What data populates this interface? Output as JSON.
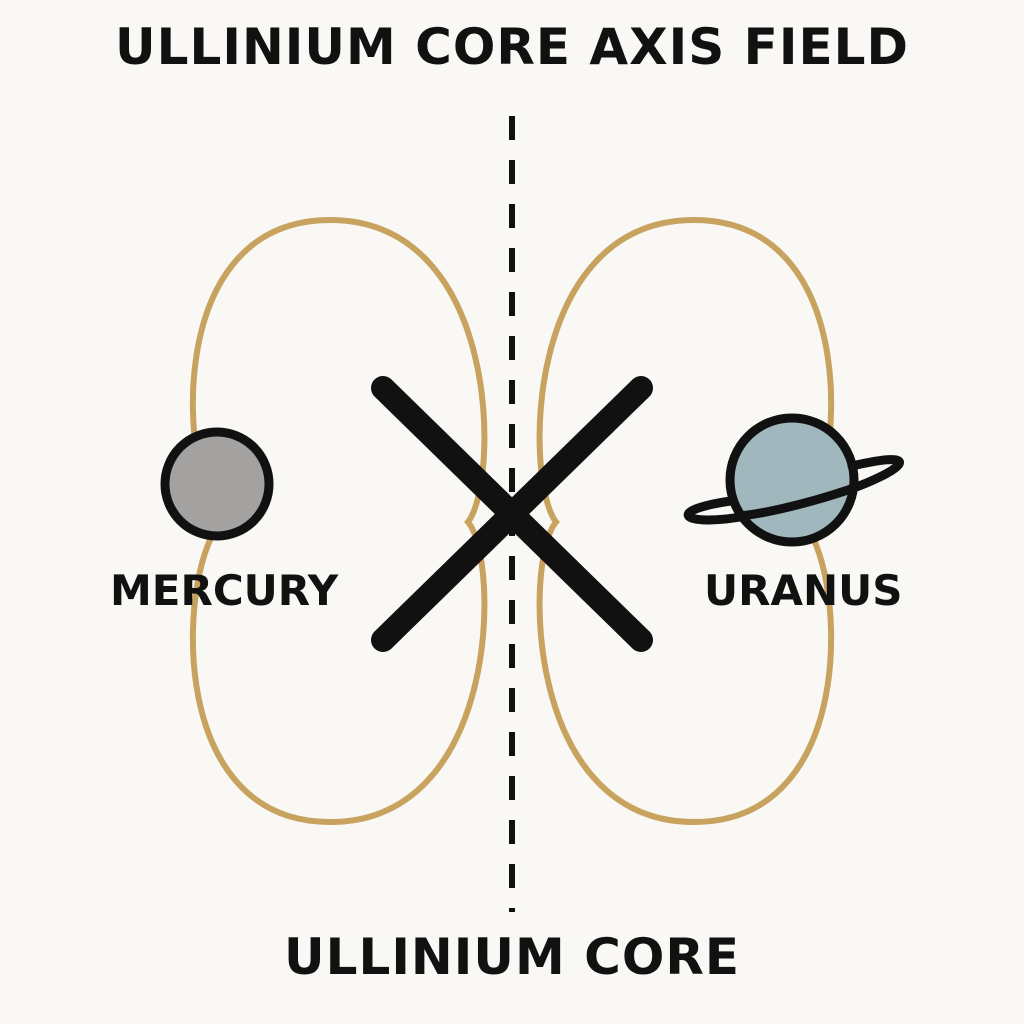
{
  "diagram": {
    "title": "ULLINIUM CORE AXIS FIELD",
    "bottom_label": "ULLINIUM CORE",
    "planets": [
      {
        "name": "MERCURY",
        "icon": "mercury-icon",
        "fill": "#a3a2a0"
      },
      {
        "name": "URANUS",
        "icon": "uranus-icon",
        "fill": "#9fb7bd"
      }
    ],
    "colors": {
      "background": "#f9f8f4",
      "field_lines": "#c8a35f",
      "ink": "#111111"
    }
  }
}
